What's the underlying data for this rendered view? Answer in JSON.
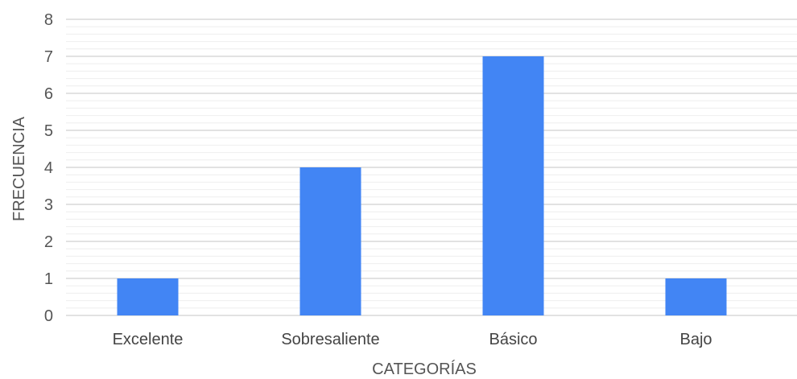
{
  "chart_data": {
    "type": "bar",
    "title": "",
    "xlabel": "CATEGORÍAS",
    "ylabel": "FRECUENCIA",
    "categories": [
      "Excelente",
      "Sobresaliente",
      "Básico",
      "Bajo"
    ],
    "values": [
      1,
      4,
      7,
      1
    ],
    "ylim": [
      0,
      8
    ],
    "yticks": [
      "0",
      "1",
      "2",
      "3",
      "4",
      "5",
      "6",
      "7",
      "8"
    ],
    "grid": true,
    "legend": "none",
    "bar_color": "#4285f4"
  }
}
